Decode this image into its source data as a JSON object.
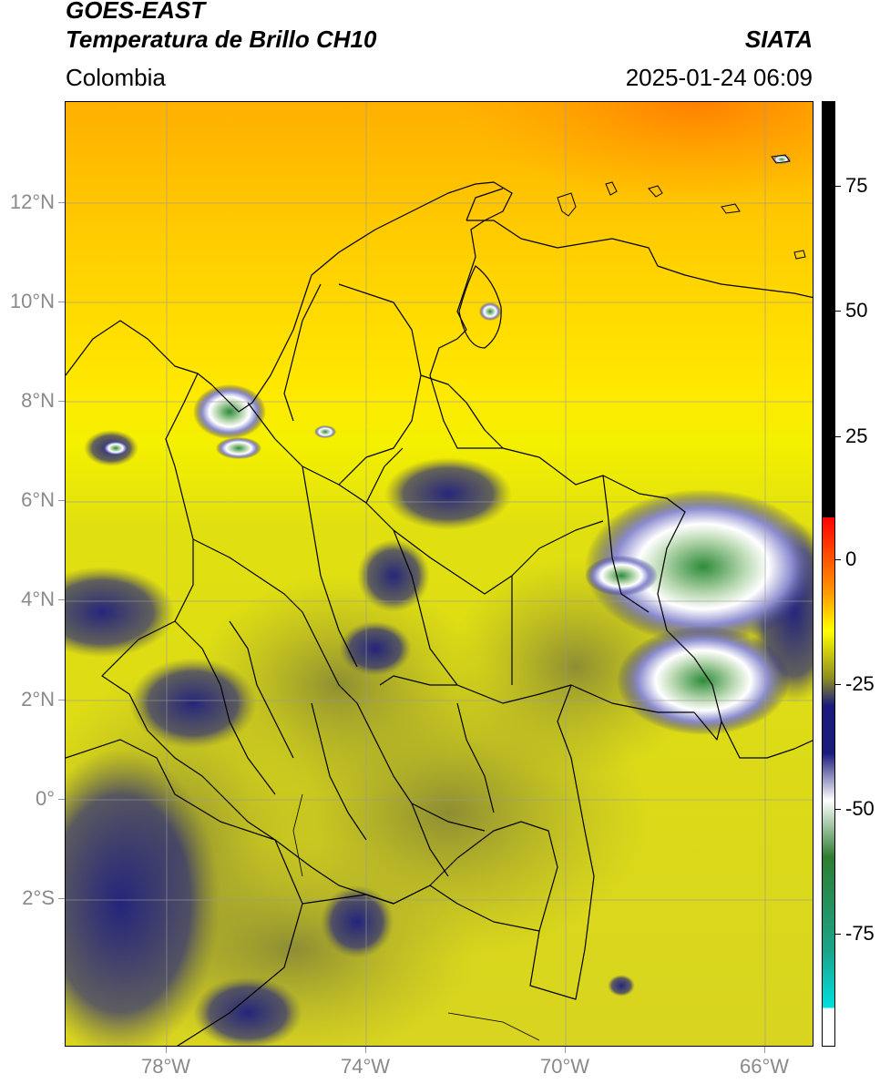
{
  "header": {
    "satellite": "GOES-EAST",
    "product": "Temperatura de Brillo CH10",
    "brand": "SIATA",
    "region": "Colombia",
    "timestamp": "2025-01-24 06:09"
  },
  "axes": {
    "lat_labels": [
      "12°N",
      "10°N",
      "8°N",
      "6°N",
      "4°N",
      "2°N",
      "0°",
      "2°S"
    ],
    "lon_labels": [
      "78°W",
      "74°W",
      "70°W",
      "66°W"
    ]
  },
  "colorbar": {
    "labels": [
      "75",
      "50",
      "25",
      "0",
      "-25",
      "-50",
      "-75"
    ],
    "colors": [
      "#000000",
      "#ff0000",
      "#ff9900",
      "#ffff00",
      "#8f8f20",
      "#1b1b7e",
      "#ffffff",
      "#2e7d32",
      "#1aa58a",
      "#00e0e0"
    ]
  }
}
